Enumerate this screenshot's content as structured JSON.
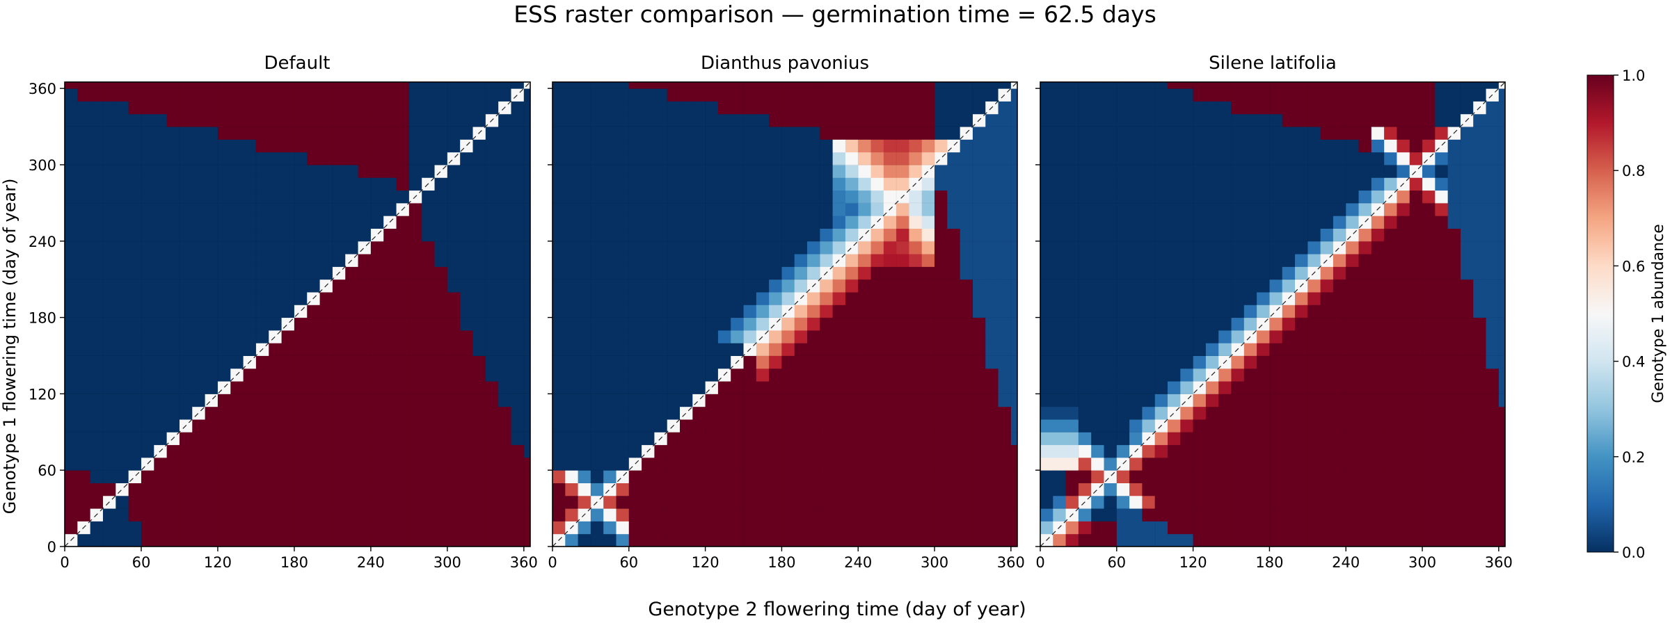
{
  "figure": {
    "title": "ESS raster comparison — germination time = 62.5 days",
    "xlabel": "Genotype 2 flowering time (day of year)",
    "ylabel": "Genotype 1 flowering time (day of year)",
    "colorbar": {
      "label": "Genotype 1 abundance",
      "ticks": [
        "0.0",
        "0.2",
        "0.4",
        "0.6",
        "0.8",
        "1.0"
      ],
      "colormap": "RdBu_r",
      "range": [
        0,
        1
      ]
    }
  },
  "chart_data": [
    {
      "type": "heatmap",
      "title": "Default",
      "xlabel": "Genotype 2 flowering time (day of year)",
      "ylabel": "Genotype 1 flowering time (day of year)",
      "xlim": [
        0,
        365
      ],
      "ylim": [
        0,
        365
      ],
      "ticks": [
        0,
        60,
        120,
        180,
        240,
        300,
        360
      ],
      "grid_step_days": 10,
      "diagonal_line": true,
      "description_points": {
        "lower_x_range_y_for_high_abundance": [
          0,
          60
        ],
        "upper_region_y_above_boundary": [
          280,
          365
        ],
        "crossing_point": [
          272,
          272
        ]
      }
    },
    {
      "type": "heatmap",
      "title": "Dianthus pavonius",
      "xlabel": "Genotype 2 flowering time (day of year)",
      "ylabel": "",
      "xlim": [
        0,
        365
      ],
      "ylim": [
        0,
        365
      ],
      "ticks": [
        0,
        60,
        120,
        180,
        240,
        300,
        360
      ],
      "grid_step_days": 10,
      "diagonal_line": true,
      "description_points": {
        "upper_crossing": [
          270,
          270
        ],
        "lower_crossing": [
          40,
          40
        ]
      }
    },
    {
      "type": "heatmap",
      "title": "Silene latifolia",
      "xlabel": "Genotype 2 flowering time (day of year)",
      "ylabel": "",
      "xlim": [
        0,
        365
      ],
      "ylim": [
        0,
        365
      ],
      "ticks": [
        0,
        60,
        120,
        180,
        240,
        300,
        360
      ],
      "grid_step_days": 10,
      "diagonal_line": true,
      "description_points": {
        "upper_crossing": [
          295,
          295
        ],
        "lower_crossing": [
          55,
          55
        ]
      }
    }
  ]
}
